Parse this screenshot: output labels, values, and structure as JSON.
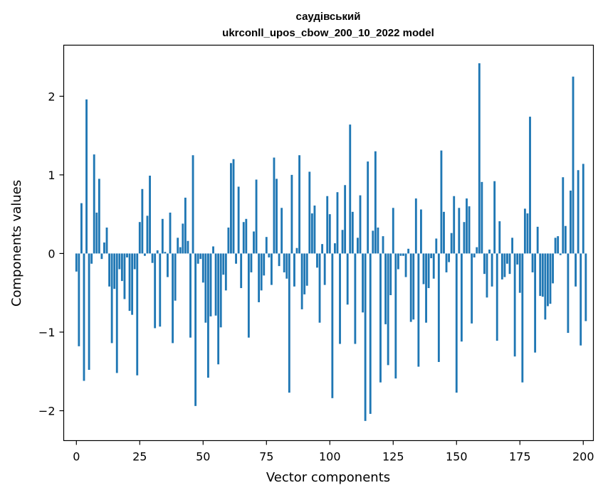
{
  "chart_data": {
    "type": "bar",
    "title_line1": "саудівський",
    "title_line2": "ukrconll_upos_cbow_200_10_2022 model",
    "xlabel": "Vector components",
    "ylabel": "Components values",
    "xlim": [
      -5,
      204
    ],
    "ylim": [
      -2.38,
      2.65
    ],
    "xticks": [
      0,
      25,
      50,
      75,
      100,
      125,
      150,
      175,
      200
    ],
    "yticks": [
      -2,
      -1,
      0,
      1,
      2
    ],
    "bar_color": "#1f77b4",
    "grid": false,
    "legend": "none",
    "values": [
      -0.23,
      -1.18,
      0.64,
      -1.62,
      1.96,
      -1.48,
      -0.13,
      1.26,
      0.52,
      0.95,
      -0.07,
      0.14,
      0.33,
      -0.42,
      -1.14,
      -0.45,
      -1.52,
      -0.2,
      -0.35,
      -0.58,
      -0.05,
      -0.73,
      -0.78,
      -0.2,
      -1.55,
      0.4,
      0.82,
      -0.03,
      0.48,
      0.99,
      -0.12,
      -0.95,
      0.04,
      -0.93,
      0.44,
      0.02,
      -0.3,
      0.52,
      -1.14,
      -0.6,
      0.2,
      0.08,
      0.38,
      0.71,
      0.16,
      -1.07,
      1.25,
      -1.94,
      -0.13,
      -0.07,
      -0.37,
      -0.88,
      -1.58,
      -0.8,
      0.09,
      -0.79,
      -1.41,
      -0.94,
      -0.27,
      -0.47,
      0.33,
      1.15,
      1.2,
      -0.13,
      0.85,
      -0.44,
      0.4,
      0.44,
      -1.07,
      -0.24,
      0.28,
      0.94,
      -0.62,
      -0.47,
      -0.28,
      0.21,
      -0.05,
      -0.4,
      1.22,
      0.95,
      -0.16,
      0.58,
      -0.24,
      -0.32,
      -1.77,
      1.0,
      -0.42,
      0.07,
      1.25,
      -0.71,
      -0.52,
      -0.41,
      1.04,
      0.51,
      0.61,
      -0.18,
      -0.88,
      0.12,
      -0.4,
      0.73,
      0.5,
      -1.84,
      0.13,
      0.78,
      -1.15,
      0.3,
      0.87,
      -0.65,
      1.64,
      0.53,
      -1.15,
      0.2,
      0.74,
      -0.75,
      -2.13,
      1.17,
      -2.04,
      0.29,
      1.3,
      0.33,
      -1.64,
      0.22,
      -0.9,
      -1.42,
      -0.53,
      0.58,
      -1.59,
      -0.2,
      -0.03,
      -0.03,
      -0.3,
      0.06,
      -0.87,
      -0.84,
      0.7,
      -1.44,
      0.56,
      -0.39,
      -0.88,
      -0.44,
      -0.06,
      -0.32,
      0.19,
      -1.38,
      1.31,
      0.53,
      -0.24,
      -0.11,
      0.26,
      0.73,
      -1.77,
      0.58,
      -1.12,
      0.4,
      0.7,
      0.6,
      -0.89,
      -0.05,
      0.08,
      2.42,
      0.91,
      -0.26,
      -0.56,
      0.05,
      -0.42,
      0.92,
      -1.11,
      0.41,
      -0.33,
      -0.3,
      -0.13,
      -0.26,
      0.2,
      -1.31,
      -0.14,
      -0.5,
      -1.64,
      0.57,
      0.51,
      1.74,
      -0.24,
      -1.26,
      0.34,
      -0.54,
      -0.55,
      -0.84,
      -0.67,
      -0.64,
      -0.38,
      0.2,
      0.22,
      -0.02,
      0.97,
      0.35,
      -1.01,
      0.8,
      2.25,
      -0.42,
      1.06,
      -1.17,
      1.14,
      -0.86
    ]
  }
}
